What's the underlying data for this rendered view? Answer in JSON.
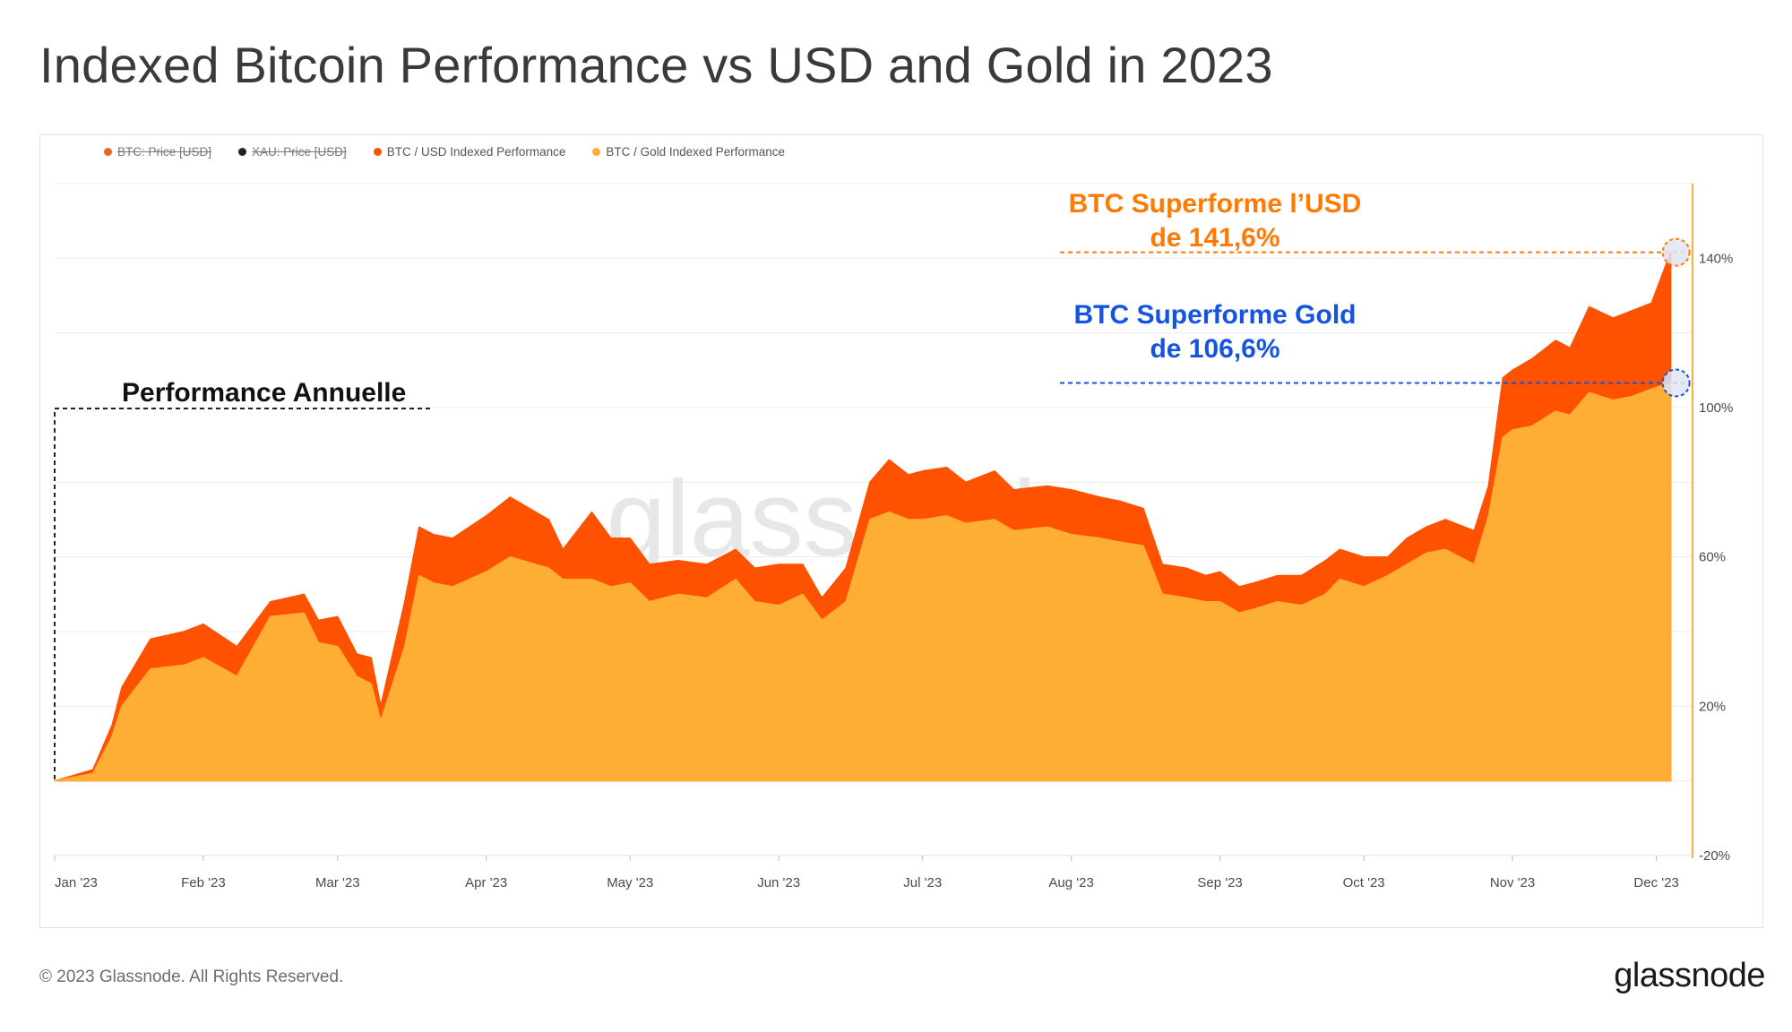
{
  "header": {
    "title": "Indexed Bitcoin Performance vs USD and Gold in 2023"
  },
  "legend": [
    {
      "label": "BTC: Price [USD]",
      "color": "#e8641f",
      "enabled": false
    },
    {
      "label": "XAU: Price [USD]",
      "color": "#222222",
      "enabled": false
    },
    {
      "label": "BTC / USD Indexed Performance",
      "color": "#ff5200",
      "enabled": true
    },
    {
      "label": "BTC / Gold Indexed Performance",
      "color": "#ffae35",
      "enabled": true
    }
  ],
  "watermark": "glassnode",
  "annotations": {
    "usd_line1": "BTC Superforme l’USD",
    "usd_line2": "de 141,6%",
    "gold_line1": "BTC Superforme Gold",
    "gold_line2": "de 106,6%",
    "annual": "Performance Annuelle"
  },
  "colors": {
    "usd_series": "#ff5200",
    "gold_series": "#ffae35",
    "usd_annotation": "#ff7a00",
    "gold_annotation": "#1554e0",
    "grid": "#ececec",
    "right_axis_line": "#ffae35"
  },
  "chart_data": {
    "type": "area",
    "title": "Indexed Bitcoin Performance vs USD and Gold in 2023",
    "x_tick_labels": [
      "Jan '23",
      "Feb '23",
      "Mar '23",
      "Apr '23",
      "May '23",
      "Jun '23",
      "Jul '23",
      "Aug '23",
      "Sep '23",
      "Oct '23",
      "Nov '23",
      "Dec '23"
    ],
    "x_tick_days": [
      0,
      31,
      59,
      90,
      120,
      151,
      181,
      212,
      243,
      273,
      304,
      334
    ],
    "x_range_days": [
      0,
      338
    ],
    "y_axis": {
      "position": "right",
      "ylim": [
        -20,
        160
      ],
      "tick_values": [
        -20,
        20,
        60,
        100,
        140
      ],
      "tick_labels": [
        "-20%",
        "20%",
        "60%",
        "100%",
        "140%"
      ]
    },
    "series": [
      {
        "name": "BTC / USD Indexed Performance",
        "days": [
          0,
          8,
          12,
          14,
          20,
          27,
          31,
          38,
          45,
          52,
          55,
          59,
          63,
          66,
          68,
          73,
          76,
          79,
          83,
          90,
          95,
          103,
          106,
          112,
          116,
          120,
          124,
          130,
          136,
          142,
          146,
          151,
          156,
          160,
          165,
          170,
          174,
          178,
          181,
          186,
          190,
          196,
          200,
          207,
          212,
          218,
          222,
          227,
          231,
          236,
          240,
          243,
          247,
          250,
          255,
          260,
          265,
          268,
          273,
          278,
          282,
          286,
          290,
          296,
          299,
          302,
          304,
          308,
          313,
          316,
          320,
          325,
          329,
          333,
          337
        ],
        "values": [
          0,
          3,
          15,
          25,
          38,
          40,
          42,
          36,
          48,
          50,
          43,
          44,
          34,
          33,
          20,
          48,
          68,
          66,
          65,
          71,
          76,
          70,
          62,
          72,
          65,
          65,
          58,
          59,
          58,
          62,
          57,
          58,
          58,
          49,
          57,
          80,
          86,
          82,
          83,
          84,
          80,
          83,
          78,
          79,
          78,
          76,
          75,
          73,
          58,
          57,
          55,
          56,
          52,
          53,
          55,
          55,
          59,
          62,
          60,
          60,
          65,
          68,
          70,
          67,
          79,
          108,
          110,
          113,
          118,
          116,
          127,
          124,
          126,
          128,
          141.6
        ]
      },
      {
        "name": "BTC / Gold Indexed Performance",
        "days": [
          0,
          8,
          12,
          14,
          20,
          27,
          31,
          38,
          45,
          52,
          55,
          59,
          63,
          66,
          68,
          73,
          76,
          79,
          83,
          90,
          95,
          103,
          106,
          112,
          116,
          120,
          124,
          130,
          136,
          142,
          146,
          151,
          156,
          160,
          165,
          170,
          174,
          178,
          181,
          186,
          190,
          196,
          200,
          207,
          212,
          218,
          222,
          227,
          231,
          236,
          240,
          243,
          247,
          250,
          255,
          260,
          265,
          268,
          273,
          278,
          282,
          286,
          290,
          296,
          299,
          302,
          304,
          308,
          313,
          316,
          320,
          325,
          329,
          333,
          337
        ],
        "values": [
          0,
          2,
          12,
          20,
          30,
          31,
          33,
          28,
          44,
          45,
          37,
          36,
          28,
          26,
          16,
          36,
          55,
          53,
          52,
          56,
          60,
          57,
          54,
          54,
          52,
          53,
          48,
          50,
          49,
          54,
          48,
          47,
          50,
          43,
          48,
          70,
          72,
          70,
          70,
          71,
          69,
          70,
          67,
          68,
          66,
          65,
          64,
          63,
          50,
          49,
          48,
          48,
          45,
          46,
          48,
          47,
          50,
          54,
          52,
          55,
          58,
          61,
          62,
          58,
          71,
          92,
          94,
          95,
          99,
          98,
          104,
          102,
          103,
          105,
          106.6
        ]
      }
    ],
    "highlight_values": {
      "btc_usd": 141.6,
      "btc_gold": 106.6
    },
    "grid": true,
    "legend_position": "top-left"
  },
  "footer": {
    "copyright": "© 2023 Glassnode. All Rights Reserved.",
    "brand": "glassnode"
  }
}
